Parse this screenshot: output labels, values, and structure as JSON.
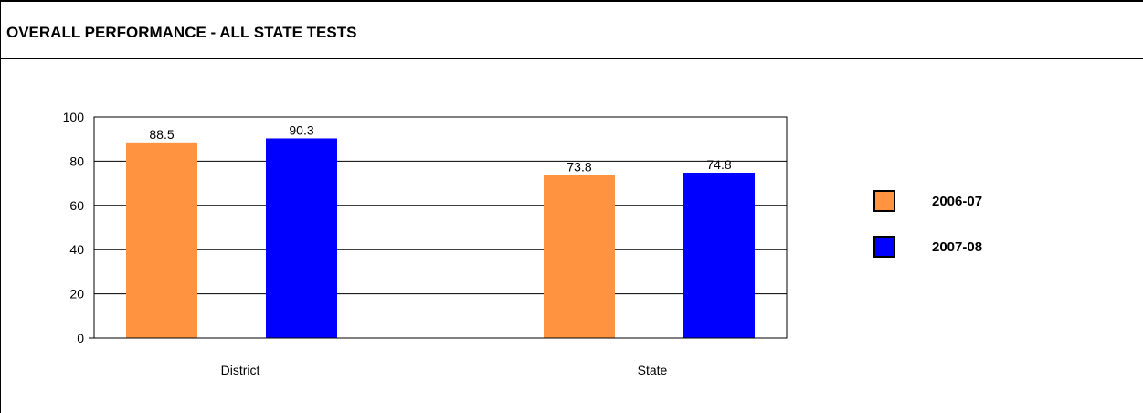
{
  "header": {
    "title": "OVERALL PERFORMANCE - ALL STATE TESTS"
  },
  "colors": {
    "series_2006_07": "#FF9340",
    "series_2007_08": "#0000FF"
  },
  "chart_data": {
    "type": "bar",
    "categories": [
      "District",
      "State"
    ],
    "series": [
      {
        "name": "2006-07",
        "values": [
          88.5,
          73.8
        ],
        "labels": [
          "88.5",
          "73.8"
        ]
      },
      {
        "name": "2007-08",
        "values": [
          90.3,
          74.8
        ],
        "labels": [
          "90.3",
          "74.8"
        ]
      }
    ],
    "ylim": [
      0,
      100
    ],
    "yticks": [
      "0",
      "20",
      "40",
      "60",
      "80",
      "100"
    ],
    "grid": true,
    "legend_position": "right"
  }
}
